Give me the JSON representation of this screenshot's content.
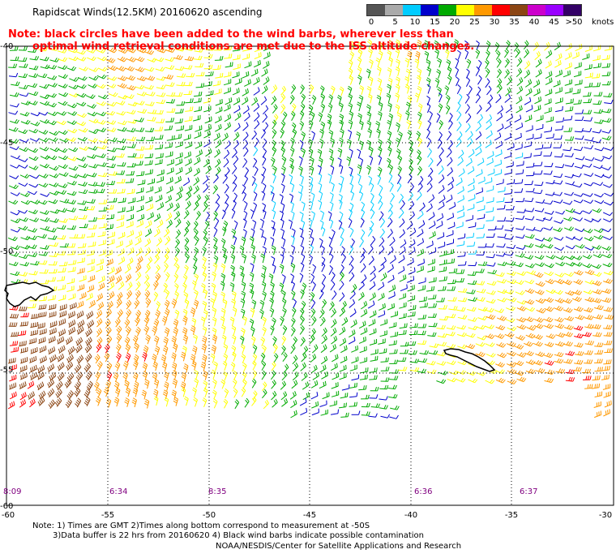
{
  "header": {
    "title": "Rapidscat Winds(12.5KM) 20160620 ascending"
  },
  "note": {
    "line1": "Note: black circles have been added to the wind barbs, wherever less than",
    "line2": "optimal wind retrieval conditions are met due to the ISS altitude changes."
  },
  "legend": {
    "labels": [
      "0",
      "5",
      "10",
      "15",
      "20",
      "25",
      "30",
      "35",
      "40",
      "45",
      ">50"
    ],
    "unit": "knots",
    "colors": [
      "#555555",
      "#aaaaaa",
      "#00ccff",
      "#0000cc",
      "#00aa00",
      "#ffff00",
      "#ff9900",
      "#ff0000",
      "#8b4513",
      "#cc00cc",
      "#9900ff",
      "#330066"
    ]
  },
  "map": {
    "lon_ticks": [
      "-60",
      "-55",
      "-50",
      "-45",
      "-40",
      "-35",
      "-30"
    ],
    "lat_ticks": [
      "-40",
      "-45",
      "-50",
      "-55",
      "-60"
    ],
    "time_labels": [
      "8:09",
      "6:34",
      "8:35",
      "6:36",
      "6:37"
    ],
    "region": {
      "lon_min": -60,
      "lon_max": -30,
      "lat_min": -60,
      "lat_max": -40
    }
  },
  "footer": {
    "line1": "Note: 1) Times are GMT 2)Times along bottom correspond to measurement at -50S",
    "line2": "3)Data buffer is 22 hrs from 20160620 4) Black wind barbs indicate possible contamination",
    "credit": "NOAA/NESDIS/Center for Satellite Applications and Research"
  }
}
